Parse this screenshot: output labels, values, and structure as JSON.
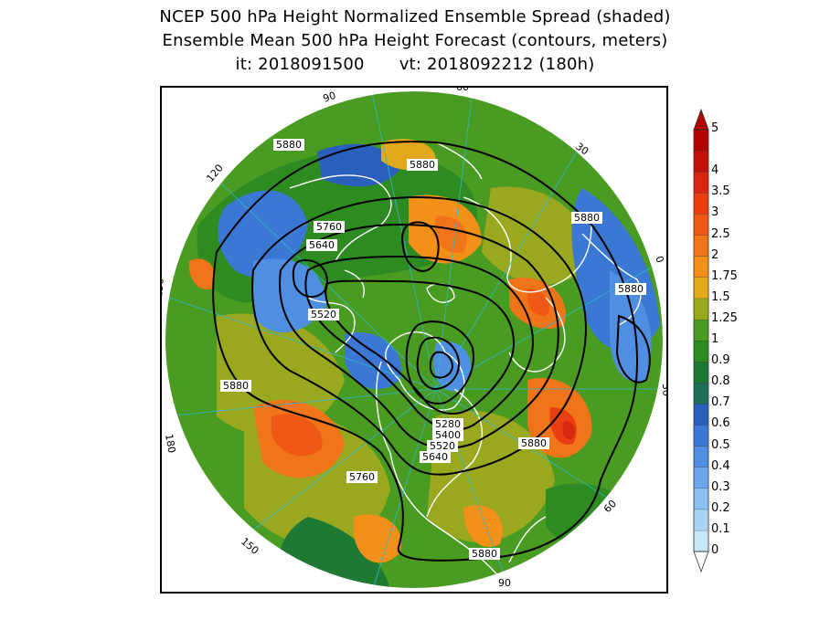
{
  "title": {
    "line1": "NCEP 500 hPa Height Normalized Ensemble Spread (shaded)",
    "line2": "Ensemble Mean 500 hPa Height Forecast (contours, meters)",
    "init": "it: 2018091500",
    "valid": "vt: 2018092212 (180h)"
  },
  "colorbar": {
    "labels": [
      "0",
      "0.1",
      "0.2",
      "0.3",
      "0.4",
      "0.5",
      "0.6",
      "0.7",
      "0.8",
      "0.9",
      "1",
      "1.25",
      "1.5",
      "1.75",
      "2",
      "2.5",
      "3",
      "3.5",
      "4",
      "5"
    ],
    "colors": [
      "#c7e6fa",
      "#a9d4f5",
      "#8cc0f0",
      "#6ea8ea",
      "#4f8ee0",
      "#3a78d4",
      "#2a60bc",
      "#1f6e5a",
      "#1e7a32",
      "#2e8b22",
      "#4a9b22",
      "#9aa820",
      "#e3a81c",
      "#f2901a",
      "#f07418",
      "#ee5a16",
      "#e83e12",
      "#d82610",
      "#c01208",
      "#b00000"
    ]
  },
  "map": {
    "contour_labels": [
      "5880",
      "5880",
      "5880",
      "5880",
      "5760",
      "5640",
      "5520",
      "5880",
      "5280",
      "5400",
      "5520",
      "5640",
      "5880",
      "5760",
      "5880"
    ],
    "longitude_labels": [
      "90",
      "60",
      "30",
      "0",
      "30",
      "60",
      "90",
      "120",
      "150",
      "180",
      "150",
      "120"
    ]
  }
}
